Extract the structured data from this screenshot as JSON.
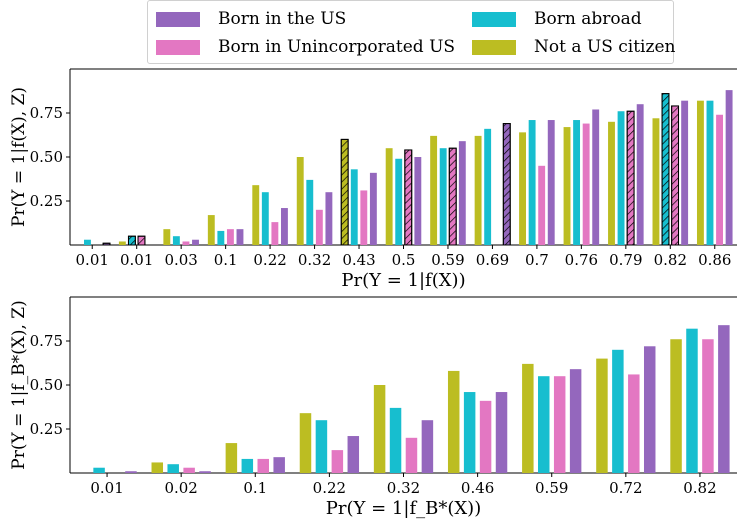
{
  "legend": [
    {
      "label": "Born in the US",
      "color": "#9467bd"
    },
    {
      "label": "Born abroad",
      "color": "#17becf"
    },
    {
      "label": "Born in Unincorporated US",
      "color": "#e377c2"
    },
    {
      "label": "Not a US citizen",
      "color": "#bcbd22"
    }
  ],
  "series_order_in_group": [
    "Not a US citizen",
    "Born abroad",
    "Born in Unincorporated US",
    "Born in the US"
  ],
  "chart_data": [
    {
      "type": "bar",
      "title": "",
      "xlabel": "Pr(Y = 1|f(X))",
      "ylabel": "Pr(Y = 1|f(X), Z)",
      "ylim": [
        0,
        1.0
      ],
      "yticks": [
        "0.25",
        "0.50",
        "0.75"
      ],
      "categories": [
        "0.01",
        "0.01",
        "0.03",
        "0.1",
        "0.22",
        "0.32",
        "0.43",
        "0.5",
        "0.59",
        "0.69",
        "0.7",
        "0.76",
        "0.79",
        "0.82",
        "0.86"
      ],
      "series": [
        {
          "name": "Not a US citizen",
          "color": "#bcbd22",
          "values": [
            0.0,
            0.02,
            0.09,
            0.17,
            0.34,
            0.5,
            0.6,
            0.55,
            0.62,
            0.62,
            0.64,
            0.67,
            0.7,
            0.72,
            0.82
          ],
          "hatched": [
            false,
            false,
            false,
            false,
            false,
            false,
            true,
            false,
            false,
            false,
            false,
            false,
            false,
            false,
            false
          ]
        },
        {
          "name": "Born abroad",
          "color": "#17becf",
          "values": [
            0.03,
            0.05,
            0.05,
            0.08,
            0.3,
            0.37,
            0.43,
            0.49,
            0.55,
            0.66,
            0.71,
            0.71,
            0.76,
            0.86,
            0.82
          ],
          "hatched": [
            false,
            true,
            false,
            false,
            false,
            false,
            false,
            false,
            false,
            false,
            false,
            false,
            false,
            true,
            false
          ]
        },
        {
          "name": "Born in Unincorporated US",
          "color": "#e377c2",
          "values": [
            0.0,
            0.05,
            0.02,
            0.09,
            0.13,
            0.2,
            0.31,
            0.54,
            0.55,
            0.0,
            0.45,
            0.69,
            0.76,
            0.79,
            0.74
          ],
          "hatched": [
            false,
            true,
            false,
            false,
            false,
            false,
            false,
            true,
            true,
            false,
            false,
            false,
            true,
            true,
            false
          ]
        },
        {
          "name": "Born in the US",
          "color": "#9467bd",
          "values": [
            0.01,
            0.0,
            0.03,
            0.09,
            0.21,
            0.3,
            0.41,
            0.5,
            0.59,
            0.69,
            0.71,
            0.77,
            0.8,
            0.82,
            0.88
          ],
          "hatched": [
            true,
            false,
            false,
            false,
            false,
            false,
            false,
            false,
            false,
            true,
            false,
            false,
            false,
            false,
            false
          ]
        }
      ]
    },
    {
      "type": "bar",
      "title": "",
      "xlabel": "Pr(Y = 1|f_B*(X))",
      "ylabel": "Pr(Y = 1|f_B*(X), Z)",
      "ylim": [
        0,
        1.0
      ],
      "yticks": [
        "0.25",
        "0.50",
        "0.75"
      ],
      "categories": [
        "0.01",
        "0.02",
        "0.1",
        "0.22",
        "0.32",
        "0.46",
        "0.59",
        "0.72",
        "0.82"
      ],
      "series": [
        {
          "name": "Not a US citizen",
          "color": "#bcbd22",
          "values": [
            0.0,
            0.06,
            0.17,
            0.34,
            0.5,
            0.58,
            0.62,
            0.65,
            0.76
          ]
        },
        {
          "name": "Born abroad",
          "color": "#17becf",
          "values": [
            0.03,
            0.05,
            0.08,
            0.3,
            0.37,
            0.46,
            0.55,
            0.7,
            0.82
          ]
        },
        {
          "name": "Born in Unincorporated US",
          "color": "#e377c2",
          "values": [
            0.0,
            0.03,
            0.08,
            0.13,
            0.2,
            0.41,
            0.55,
            0.56,
            0.76
          ]
        },
        {
          "name": "Born in the US",
          "color": "#9467bd",
          "values": [
            0.01,
            0.01,
            0.09,
            0.21,
            0.3,
            0.46,
            0.59,
            0.72,
            0.84
          ]
        }
      ]
    }
  ]
}
